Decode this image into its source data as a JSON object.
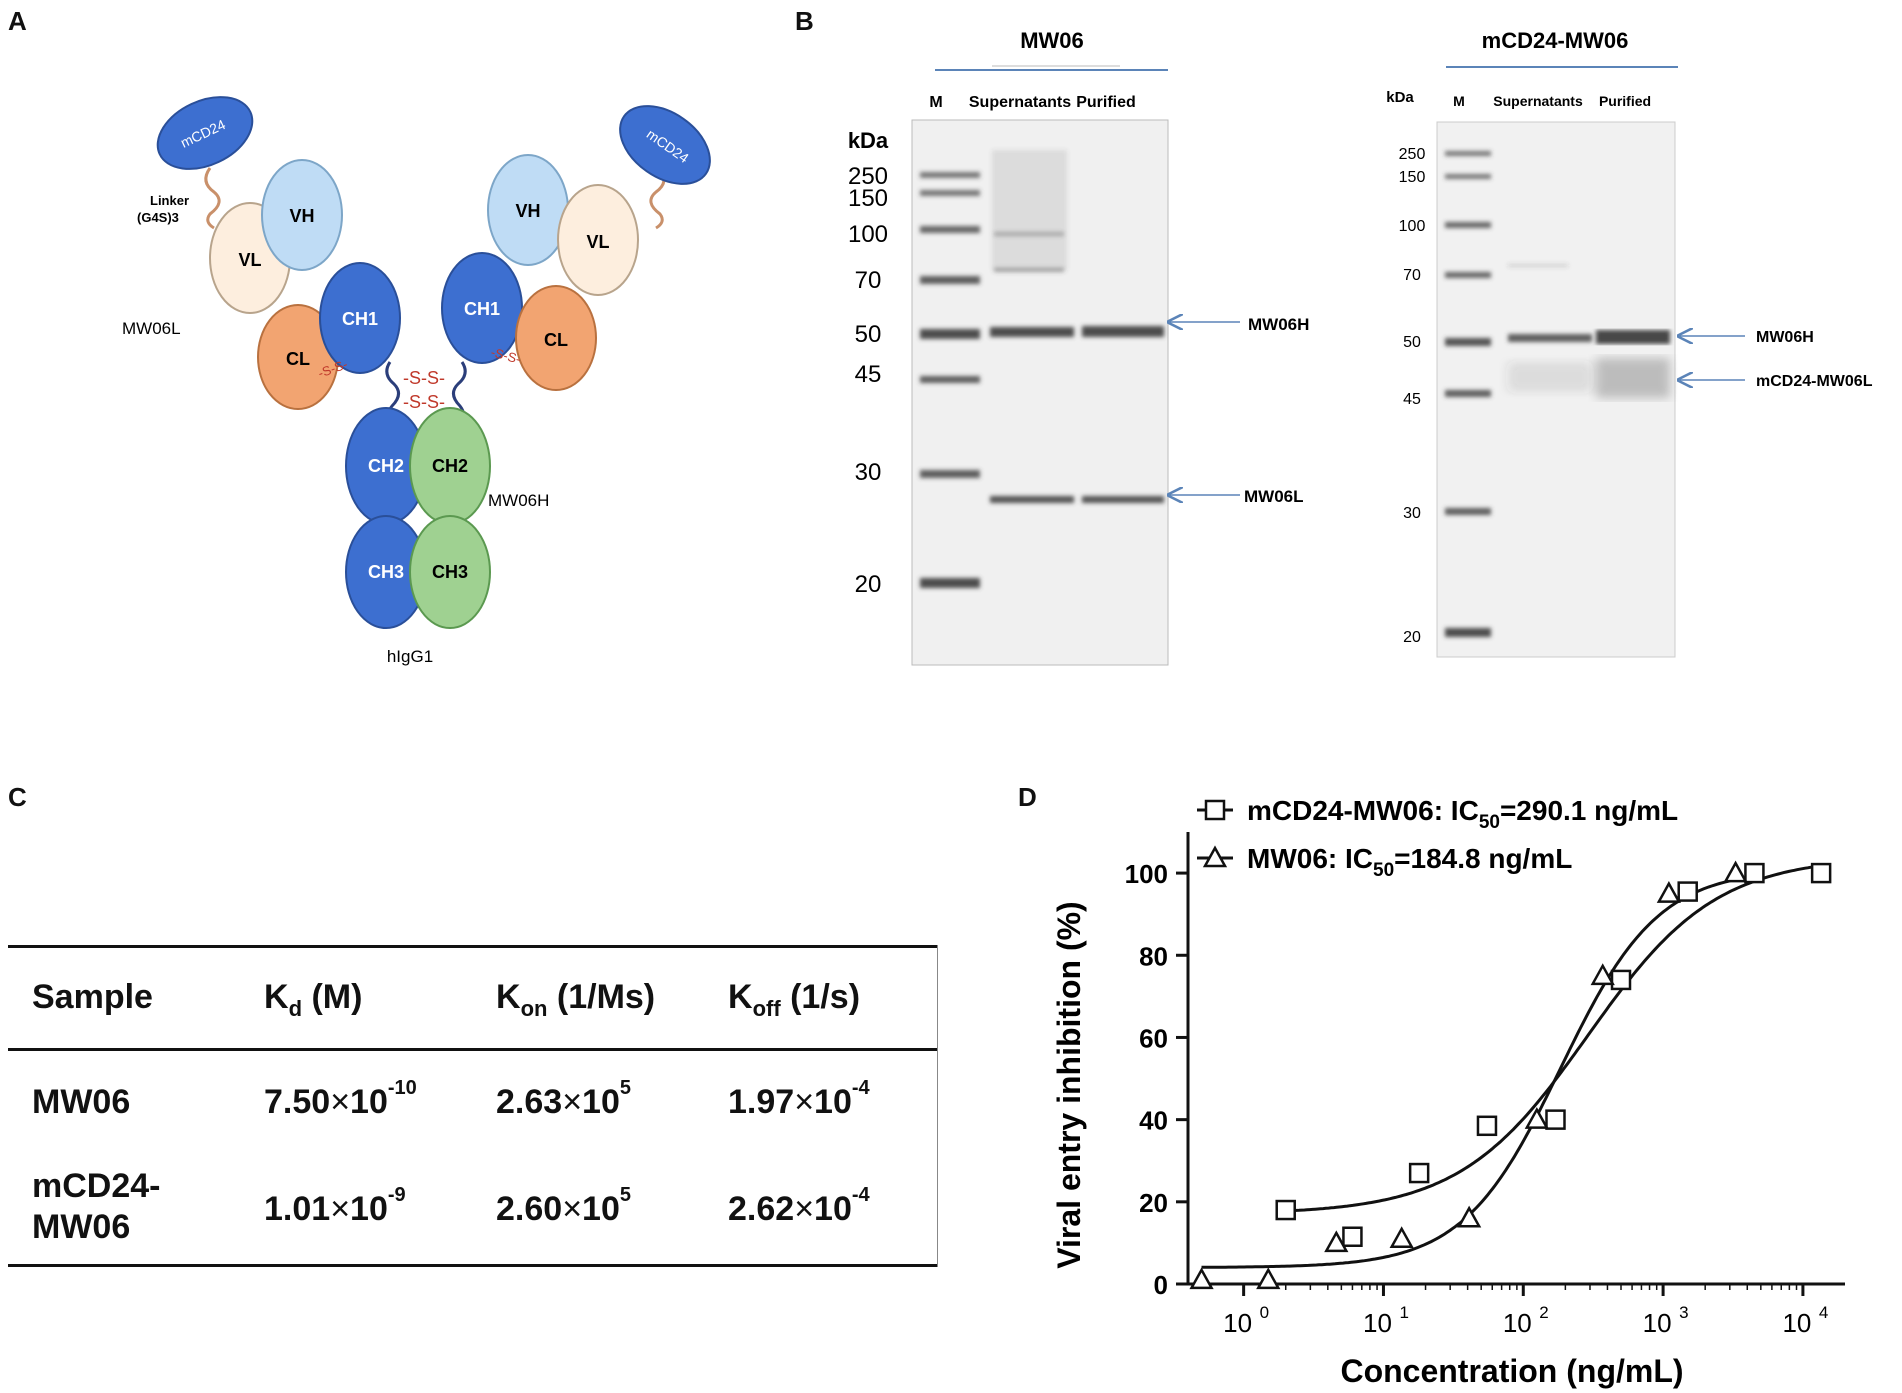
{
  "panels": {
    "A": "A",
    "B": "B",
    "C": "C",
    "D": "D"
  },
  "panelA": {
    "domains": {
      "mcd24": "mCD24",
      "vh": "VH",
      "vl": "VL",
      "ch1": "CH1",
      "cl": "CL",
      "ch2": "CH2",
      "ch3": "CH3"
    },
    "linker": "Linker",
    "linker2": "(G4S)3",
    "disulfide_small": "-S-S-",
    "disulfide_big": "-S-S-",
    "light_label": "MW06L",
    "heavy_label": "MW06H",
    "isotype": "hIgG1",
    "colors": {
      "mcd24": "#3d6fd0",
      "vh": "#bfdcf5",
      "vl": "#fdeede",
      "ch": "#3d6fd0",
      "cl": "#f2a471",
      "ch_green": "#9fd191",
      "ss": "#c0392b"
    }
  },
  "panelB": {
    "gel1": {
      "title": "MW06",
      "lanes": [
        "M",
        "Supernatants",
        "Purified"
      ],
      "kda_label": "kDa",
      "markers": [
        "250",
        "150",
        "100",
        "70",
        "50",
        "45",
        "30",
        "20"
      ],
      "arrows": [
        "MW06H",
        "MW06L"
      ]
    },
    "gel2": {
      "title": "mCD24-MW06",
      "lanes": [
        "M",
        "Supernatants",
        "Purified"
      ],
      "kda_label": "kDa",
      "markers": [
        "250",
        "150",
        "100",
        "70",
        "50",
        "45",
        "30",
        "20"
      ],
      "arrows": [
        "MW06H",
        "mCD24-MW06L"
      ]
    },
    "arrow_color": "#5b84b8"
  },
  "panelC": {
    "headers": {
      "sample": "Sample",
      "kd": "K",
      "kd_sub": "d",
      "kd_unit": " (M)",
      "kon": "K",
      "kon_sub": "on",
      "kon_unit": " (1/Ms)",
      "koff": "K",
      "koff_sub": "off",
      "koff_unit": " (1/s)"
    },
    "times": "×",
    "rows": [
      {
        "sample": "MW06",
        "sample2": "",
        "kd_m": "7.50",
        "kd_e": "-10",
        "kon_m": "2.63",
        "kon_e": "5",
        "koff_m": "1.97",
        "koff_e": "-4"
      },
      {
        "sample": "mCD24-",
        "sample2": "MW06",
        "kd_m": "1.01",
        "kd_e": "-9",
        "kon_m": "2.60",
        "kon_e": "5",
        "koff_m": "2.62",
        "koff_e": "-4"
      }
    ]
  },
  "chart_data": {
    "type": "scatter",
    "title": "",
    "xlabel": "Concentration (ng/mL)",
    "ylabel": "Viral entry inhibition (%)",
    "xscale": "log",
    "xlim": [
      0.4,
      20000
    ],
    "ylim": [
      0,
      110
    ],
    "yticks": [
      "0",
      "20",
      "40",
      "60",
      "80",
      "100"
    ],
    "xticks": [
      {
        "base": "10",
        "exp": "0"
      },
      {
        "base": "10",
        "exp": "1"
      },
      {
        "base": "10",
        "exp": "2"
      },
      {
        "base": "10",
        "exp": "3"
      },
      {
        "base": "10",
        "exp": "4"
      }
    ],
    "series": [
      {
        "name": "mCD24-MW06",
        "legend_prefix": "mCD24-MW06: IC",
        "legend_sub": "50",
        "legend_suffix": "=290.1 ng/mL",
        "marker": "square",
        "x": [
          2.0,
          6.0,
          18,
          55,
          170,
          500,
          1500,
          4500,
          13500
        ],
        "y": [
          18,
          11.5,
          27,
          38.5,
          40,
          74,
          95.5,
          100,
          100
        ],
        "fit": {
          "bottom": 17,
          "top": 104,
          "ic50": 290.1,
          "hill": 0.95
        }
      },
      {
        "name": "MW06",
        "legend_prefix": "MW06: IC",
        "legend_sub": "50",
        "legend_suffix": "=184.8 ng/mL",
        "marker": "triangle",
        "x": [
          0.5,
          1.5,
          4.6,
          13.5,
          41,
          125,
          370,
          1100,
          3300
        ],
        "y": [
          1,
          1,
          10,
          11,
          16,
          40,
          75,
          95,
          100
        ],
        "fit": {
          "bottom": 4,
          "top": 101,
          "ic50": 184.8,
          "hill": 1.25
        }
      }
    ]
  }
}
